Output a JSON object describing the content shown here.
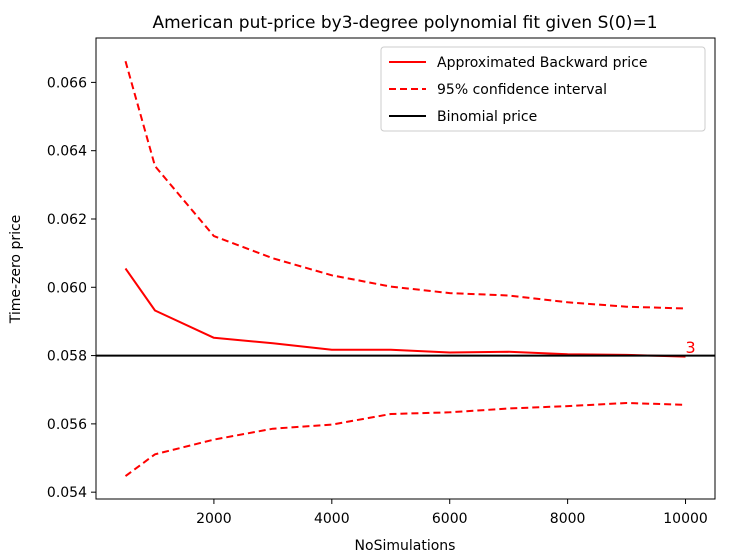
{
  "chart_data": {
    "type": "line",
    "title": "American put-price by3-degree polynomial fit given S(0)=1",
    "xlabel": "NoSimulations",
    "ylabel": "Time-zero price",
    "xlim": [
      0,
      10500
    ],
    "ylim": [
      0.0538,
      0.0673
    ],
    "xticks": [
      2000,
      4000,
      6000,
      8000,
      10000
    ],
    "yticks": [
      0.054,
      0.056,
      0.058,
      0.06,
      0.062,
      0.064,
      0.066
    ],
    "x": [
      500,
      1000,
      2000,
      3000,
      4000,
      5000,
      6000,
      7000,
      8000,
      9000,
      10000
    ],
    "series": [
      {
        "name": "Approximated Backward price",
        "style": "solid",
        "color": "#ff0000",
        "values": [
          0.06055,
          0.05932,
          0.05852,
          0.05836,
          0.05817,
          0.05817,
          0.05809,
          0.05811,
          0.05804,
          0.05802,
          0.05797
        ]
      },
      {
        "name": "95% confidence interval",
        "style": "dashed",
        "color": "#ff0000",
        "values": [
          0.06662,
          0.06355,
          0.0615,
          0.06085,
          0.06035,
          0.06002,
          0.05983,
          0.05976,
          0.05956,
          0.05943,
          0.05938
        ]
      },
      {
        "name": "",
        "style": "dashed",
        "color": "#ff0000",
        "values": [
          0.05447,
          0.05511,
          0.05554,
          0.05586,
          0.05598,
          0.05629,
          0.05634,
          0.05645,
          0.05652,
          0.05661,
          0.05656
        ]
      },
      {
        "name": "Binomial price",
        "style": "hline",
        "color": "#000000",
        "y": 0.058
      }
    ],
    "annotation": {
      "text": "3",
      "x": 10000,
      "y": 0.05811,
      "color": "#ff0000"
    },
    "legend_position": "upper right",
    "grid": false
  }
}
